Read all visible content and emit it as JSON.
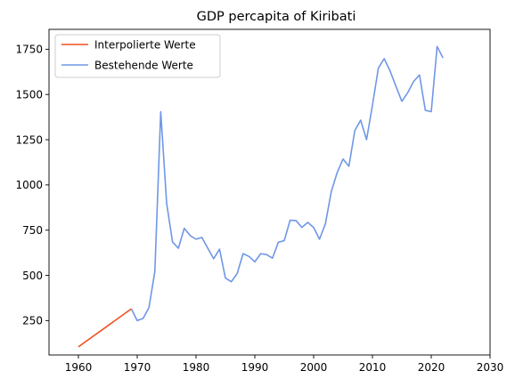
{
  "chart_data": {
    "type": "line",
    "title": "GDP percapita of Kiribati",
    "xlabel": "",
    "ylabel": "",
    "xlim": [
      1955,
      2030
    ],
    "ylim": [
      60,
      1860
    ],
    "xticks": [
      1960,
      1970,
      1980,
      1990,
      2000,
      2010,
      2020,
      2030
    ],
    "yticks": [
      250,
      500,
      750,
      1000,
      1250,
      1500,
      1750
    ],
    "grid": false,
    "legend_position": "top-left",
    "series": [
      {
        "name": "Interpolierte Werte",
        "color": "#f0501e",
        "x": [
          1960,
          1969
        ],
        "y": [
          105,
          315
        ]
      },
      {
        "name": "Bestehende Werte",
        "color": "#6f97e6",
        "x": [
          1969,
          1970,
          1971,
          1972,
          1973,
          1974,
          1975,
          1976,
          1977,
          1978,
          1979,
          1980,
          1981,
          1982,
          1983,
          1984,
          1985,
          1986,
          1987,
          1988,
          1989,
          1990,
          1991,
          1992,
          1993,
          1994,
          1995,
          1996,
          1997,
          1998,
          1999,
          2000,
          2001,
          2002,
          2003,
          2004,
          2005,
          2006,
          2007,
          2008,
          2009,
          2010,
          2011,
          2012,
          2013,
          2014,
          2015,
          2016,
          2017,
          2018,
          2019,
          2020,
          2021,
          2022
        ],
        "y": [
          315,
          250,
          262,
          322,
          522,
          1405,
          900,
          685,
          650,
          760,
          720,
          700,
          710,
          650,
          592,
          645,
          485,
          465,
          510,
          620,
          605,
          575,
          620,
          615,
          595,
          683,
          692,
          805,
          803,
          765,
          793,
          765,
          700,
          785,
          963,
          1068,
          1143,
          1103,
          1300,
          1358,
          1250,
          1440,
          1645,
          1698,
          1630,
          1545,
          1462,
          1510,
          1572,
          1608,
          1412,
          1405,
          1765,
          1702
        ]
      }
    ]
  }
}
